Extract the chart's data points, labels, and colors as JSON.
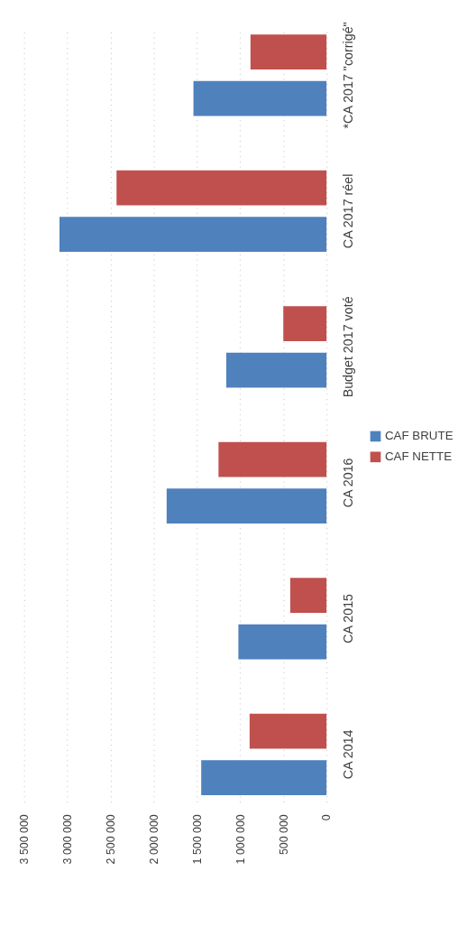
{
  "chart_data": {
    "type": "bar",
    "orientation": "horizontal",
    "categories": [
      "*CA 2017 \"corrigé\"",
      "CA 2017 réel",
      "Budget 2017 voté",
      "CA 2016",
      "CA 2015",
      "CA 2014"
    ],
    "series": [
      {
        "name": "CAF BRUTE",
        "color": "#4f81bd",
        "values": [
          1540000,
          3090000,
          1160000,
          1850000,
          1020000,
          1450000
        ]
      },
      {
        "name": "CAF NETTE",
        "color": "#c0504d",
        "values": [
          880000,
          2430000,
          500000,
          1250000,
          420000,
          890000
        ]
      }
    ],
    "xlim": [
      3500000,
      0
    ],
    "xticks": [
      {
        "value": 3500000,
        "label": "3 500 000"
      },
      {
        "value": 3000000,
        "label": "3 000 000"
      },
      {
        "value": 2500000,
        "label": "2 500 000"
      },
      {
        "value": 2000000,
        "label": "2 000 000"
      },
      {
        "value": 1500000,
        "label": "1 500 000"
      },
      {
        "value": 1000000,
        "label": "1 000 000"
      },
      {
        "value": 500000,
        "label": "500 000"
      },
      {
        "value": 0,
        "label": "0"
      }
    ],
    "grid": true,
    "legend": "right"
  }
}
